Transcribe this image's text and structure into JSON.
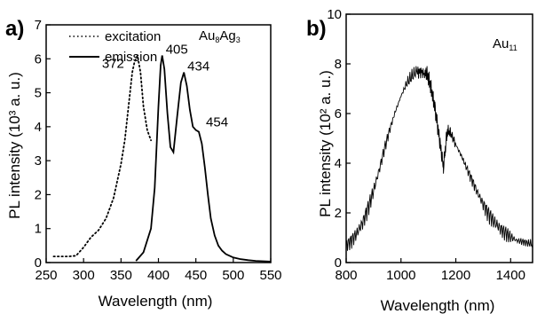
{
  "chart_data": [
    {
      "type": "line",
      "panel_label": "a)",
      "xlabel": "Wavelength (nm)",
      "ylabel": "PL intensity (10³ a. u.)",
      "xlim": [
        250,
        550
      ],
      "ylim": [
        0,
        7
      ],
      "x_ticks": [
        "250",
        "300",
        "350",
        "400",
        "450",
        "500",
        "550"
      ],
      "y_ticks": [
        "0",
        "1",
        "2",
        "3",
        "4",
        "5",
        "6",
        "7"
      ],
      "legend": {
        "placement": "top-right",
        "compound_base": "Au",
        "compound_sub1": "8",
        "compound_mid": "Ag",
        "compound_sub2": "3"
      },
      "annotations": [
        "372",
        "405",
        "434",
        "454"
      ],
      "annotation_points": [
        [
          372,
          6.1
        ],
        [
          405,
          6.1
        ],
        [
          434,
          5.6
        ],
        [
          454,
          3.9
        ]
      ],
      "series": [
        {
          "name": "excitation",
          "style": "dotted",
          "x": [
            260,
            280,
            290,
            300,
            310,
            320,
            330,
            340,
            350,
            355,
            360,
            365,
            368,
            372,
            376,
            380,
            385,
            390
          ],
          "y": [
            0.18,
            0.18,
            0.2,
            0.45,
            0.75,
            0.95,
            1.3,
            1.9,
            2.9,
            3.6,
            4.6,
            5.6,
            5.9,
            6.1,
            5.6,
            4.6,
            3.9,
            3.6
          ]
        },
        {
          "name": "emission",
          "style": "solid",
          "x": [
            370,
            380,
            390,
            395,
            400,
            403,
            405,
            408,
            412,
            416,
            420,
            425,
            430,
            434,
            438,
            442,
            446,
            450,
            454,
            458,
            462,
            466,
            470,
            475,
            480,
            485,
            490,
            500,
            510,
            520,
            530,
            540,
            550
          ],
          "y": [
            0.05,
            0.3,
            1.0,
            2.2,
            4.6,
            5.8,
            6.1,
            5.7,
            4.4,
            3.4,
            3.25,
            4.3,
            5.3,
            5.6,
            5.2,
            4.5,
            4.0,
            3.9,
            3.85,
            3.5,
            2.8,
            2.0,
            1.3,
            0.8,
            0.5,
            0.35,
            0.25,
            0.15,
            0.1,
            0.07,
            0.05,
            0.04,
            0.03
          ]
        }
      ]
    },
    {
      "type": "line",
      "panel_label": "b)",
      "xlabel": "Wavelength (nm)",
      "ylabel": "PL intensity (10² a. u.)",
      "xlim": [
        800,
        1480
      ],
      "ylim": [
        0,
        10
      ],
      "x_ticks": [
        "800",
        "1000",
        "1200",
        "1400"
      ],
      "y_ticks": [
        "0",
        "2",
        "4",
        "6",
        "8",
        "10"
      ],
      "legend": {
        "placement": "top-right",
        "compound_base": "Au",
        "compound_sub1": "11"
      },
      "series": [
        {
          "name": "Au11",
          "style": "solid",
          "x": [
            800,
            820,
            840,
            860,
            880,
            900,
            920,
            940,
            960,
            980,
            1000,
            1020,
            1040,
            1060,
            1075,
            1090,
            1100,
            1110,
            1120,
            1130,
            1140,
            1150,
            1155,
            1160,
            1165,
            1170,
            1180,
            1190,
            1200,
            1220,
            1240,
            1260,
            1280,
            1300,
            1320,
            1340,
            1360,
            1380,
            1400,
            1420,
            1440,
            1460,
            1480
          ],
          "y": [
            0.7,
            0.9,
            1.2,
            1.6,
            2.2,
            2.9,
            3.7,
            4.6,
            5.4,
            6.1,
            6.7,
            7.2,
            7.5,
            7.75,
            7.8,
            7.65,
            7.4,
            7.0,
            6.5,
            5.8,
            5.0,
            4.2,
            3.8,
            4.4,
            4.9,
            5.3,
            5.25,
            5.0,
            4.75,
            4.3,
            3.8,
            3.3,
            2.8,
            2.35,
            1.95,
            1.65,
            1.4,
            1.2,
            1.05,
            0.9,
            0.85,
            0.8,
            0.75
          ]
        }
      ]
    }
  ]
}
